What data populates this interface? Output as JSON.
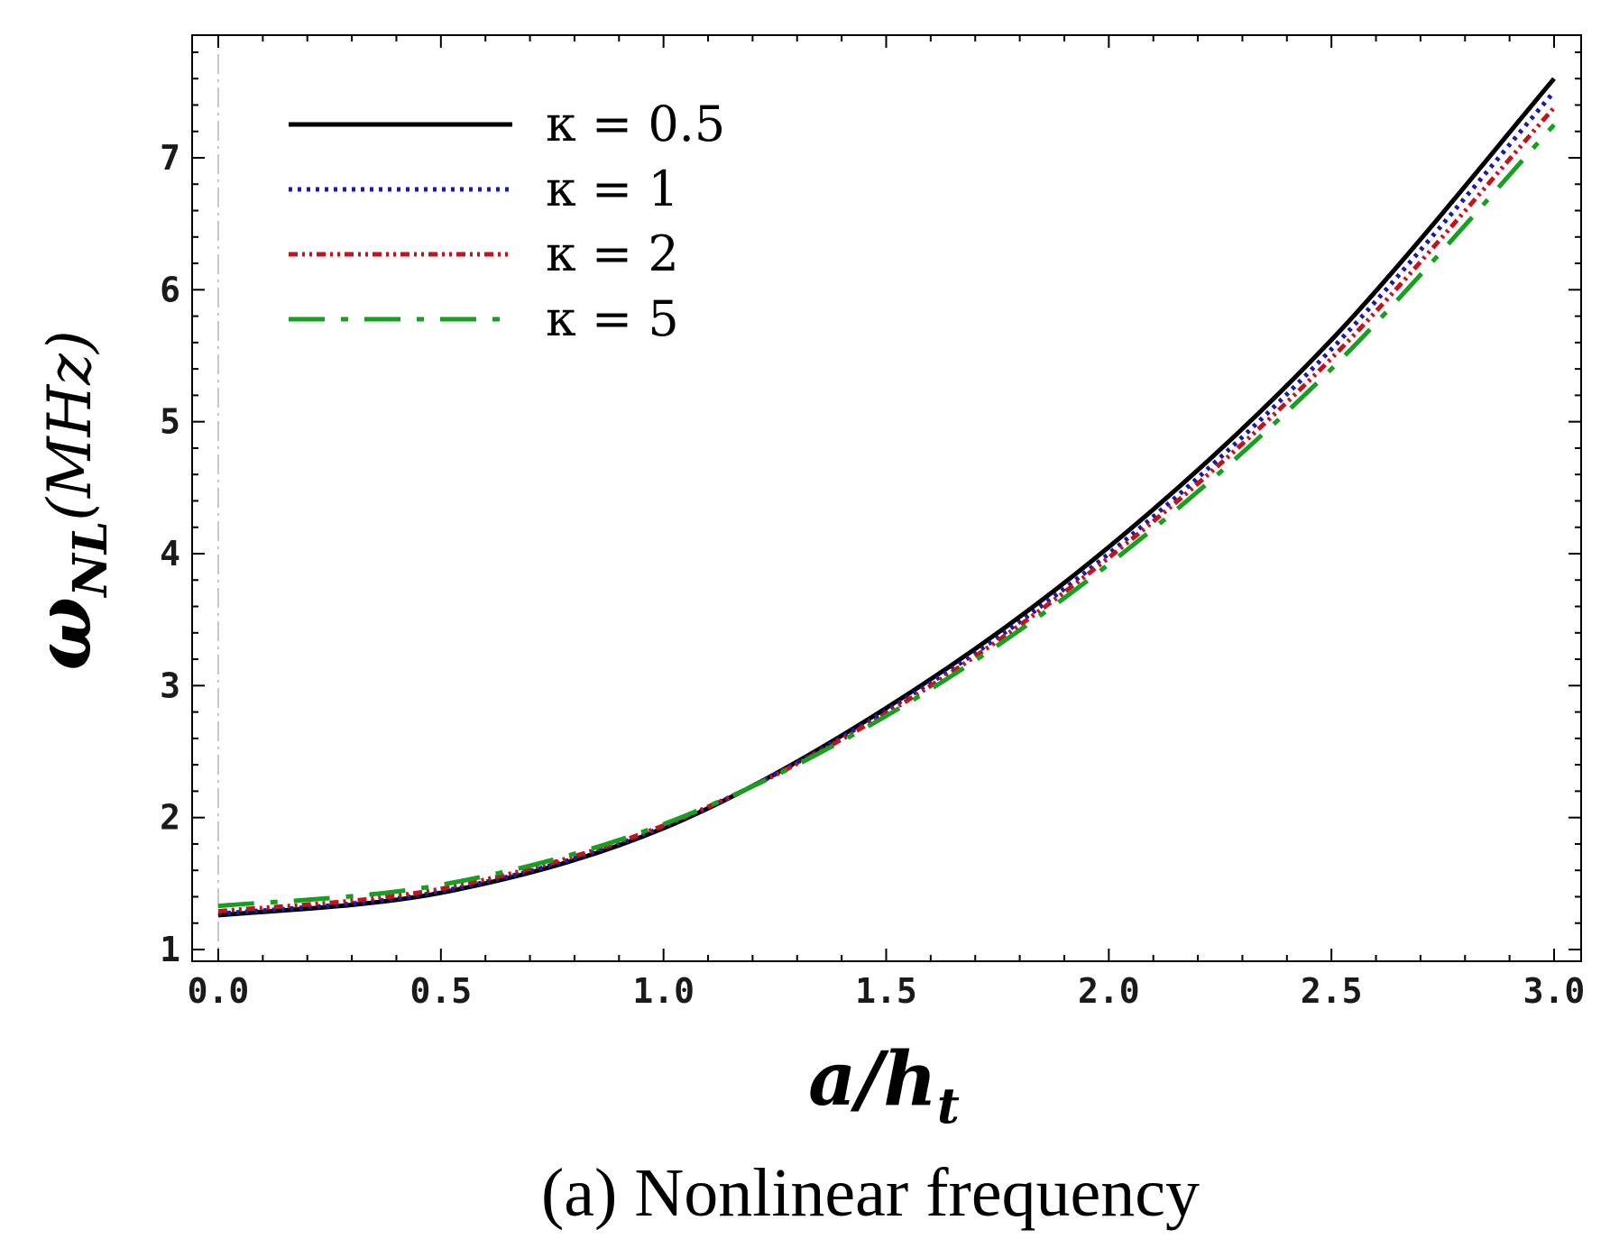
{
  "chart_data": {
    "type": "line",
    "title": "",
    "caption": "(a) Nonlinear frequency",
    "xlabel": {
      "base": "a/h",
      "sub": "t"
    },
    "ylabel": {
      "base": "ω",
      "sub": "NL",
      "unit": "(MHz)"
    },
    "xlim": [
      0,
      3.0
    ],
    "ylim": [
      1.0,
      7.8
    ],
    "xticks": [
      "0.0",
      "0.5",
      "1.0",
      "1.5",
      "2.0",
      "2.5",
      "3.0"
    ],
    "xtick_values": [
      0,
      0.5,
      1.0,
      1.5,
      2.0,
      2.5,
      3.0
    ],
    "yticks": [
      "1",
      "2",
      "3",
      "4",
      "5",
      "6",
      "7"
    ],
    "ytick_values": [
      1,
      2,
      3,
      4,
      5,
      6,
      7
    ],
    "grid": false,
    "legend_position": "top-left",
    "x": [
      0.0,
      0.5,
      1.0,
      1.5,
      2.0,
      2.5,
      3.0
    ],
    "series": [
      {
        "name": "κ = 0.5",
        "kappa": "0.5",
        "color": "#000000",
        "style": "solid",
        "values": [
          1.26,
          1.43,
          1.92,
          2.83,
          4.05,
          5.62,
          7.6
        ]
      },
      {
        "name": "κ = 1",
        "kappa": "1",
        "color": "#1a1aa6",
        "style": "dotted",
        "values": [
          1.27,
          1.44,
          1.93,
          2.81,
          4.0,
          5.55,
          7.5
        ]
      },
      {
        "name": "κ = 2",
        "kappa": "2",
        "color": "#c0141e",
        "style": "dashdotdot",
        "values": [
          1.29,
          1.46,
          1.94,
          2.79,
          3.97,
          5.48,
          7.38
        ]
      },
      {
        "name": "κ = 5",
        "kappa": "5",
        "color": "#17a01f",
        "style": "dashdot",
        "values": [
          1.33,
          1.49,
          1.95,
          2.77,
          3.92,
          5.4,
          7.25
        ]
      }
    ]
  }
}
